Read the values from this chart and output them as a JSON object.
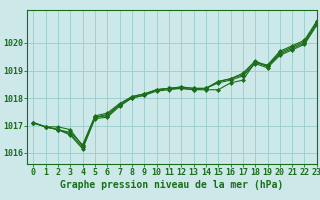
{
  "title": "Graphe pression niveau de la mer (hPa)",
  "background_color": "#cce8e8",
  "plot_bg_color": "#cce8e8",
  "grid_color": "#99cccc",
  "line_color": "#1a6e1a",
  "marker_color": "#1a6e1a",
  "xlim": [
    -0.5,
    23
  ],
  "ylim": [
    1015.6,
    1021.2
  ],
  "xticks": [
    0,
    1,
    2,
    3,
    4,
    5,
    6,
    7,
    8,
    9,
    10,
    11,
    12,
    13,
    14,
    15,
    16,
    17,
    18,
    19,
    20,
    21,
    22,
    23
  ],
  "yticks": [
    1016,
    1017,
    1018,
    1019,
    1020
  ],
  "series": [
    [
      1017.1,
      1016.95,
      1016.95,
      1016.85,
      1016.25,
      1017.3,
      1017.35,
      1017.75,
      1018.0,
      1018.1,
      1018.3,
      1018.35,
      1018.35,
      1018.3,
      1018.3,
      1018.3,
      1018.55,
      1018.65,
      1019.3,
      1019.15,
      1019.6,
      1019.8,
      1020.0,
      1020.7
    ],
    [
      1017.1,
      1016.95,
      1016.85,
      1016.75,
      1016.3,
      1017.35,
      1017.45,
      1017.8,
      1018.05,
      1018.15,
      1018.3,
      1018.35,
      1018.4,
      1018.35,
      1018.35,
      1018.6,
      1018.7,
      1018.85,
      1019.3,
      1019.2,
      1019.7,
      1019.9,
      1020.1,
      1020.8
    ],
    [
      1017.1,
      1016.95,
      1016.85,
      1016.65,
      1016.15,
      1017.25,
      1017.3,
      1017.7,
      1018.0,
      1018.1,
      1018.25,
      1018.3,
      1018.35,
      1018.3,
      1018.35,
      1018.55,
      1018.65,
      1018.8,
      1019.25,
      1019.1,
      1019.55,
      1019.75,
      1019.95,
      1020.65
    ],
    [
      1017.1,
      1016.95,
      1016.85,
      1016.7,
      1016.2,
      1017.3,
      1017.4,
      1017.75,
      1018.05,
      1018.15,
      1018.3,
      1018.35,
      1018.4,
      1018.35,
      1018.35,
      1018.6,
      1018.7,
      1018.9,
      1019.35,
      1019.15,
      1019.65,
      1019.85,
      1020.05,
      1020.75
    ]
  ],
  "fontsize_label": 7,
  "fontsize_tick": 6,
  "figwidth": 3.2,
  "figheight": 2.0,
  "dpi": 100
}
